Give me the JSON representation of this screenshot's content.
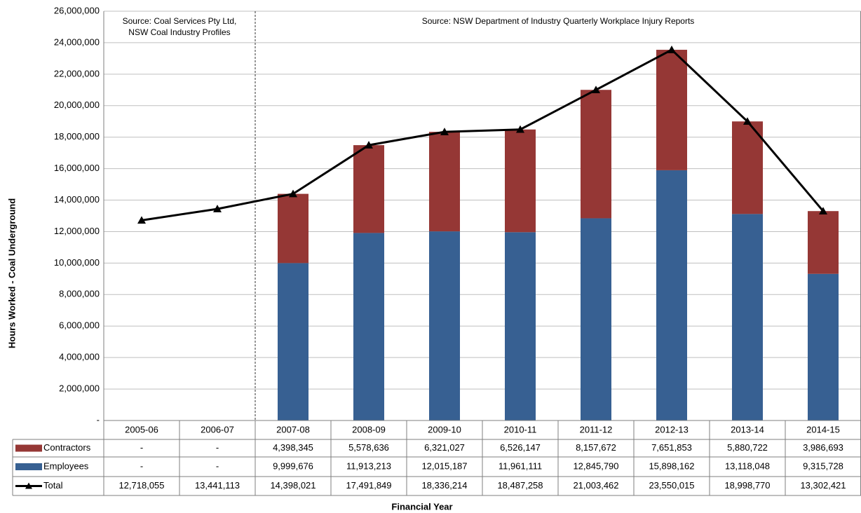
{
  "chart_data": {
    "type": "bar",
    "y_label": "Hours Worked - Coal Underground",
    "x_label": "Financial Year",
    "annotations": [
      [
        "Source:  Coal Services Pty Ltd,",
        "NSW Coal Industry Profiles"
      ],
      [
        "Source:  NSW Department of Industry Quarterly Workplace Injury Reports"
      ]
    ],
    "categories": [
      "2005-06",
      "2006-07",
      "2007-08",
      "2008-09",
      "2009-10",
      "2010-11",
      "2011-12",
      "2012-13",
      "2013-14",
      "2014-15"
    ],
    "series": [
      {
        "name": "Contractors",
        "color": "#953735",
        "kind": "bar",
        "values": [
          null,
          null,
          4398345,
          5578636,
          6321027,
          6526147,
          8157672,
          7651853,
          5880722,
          3986693
        ],
        "value_labels": [
          "-",
          "-",
          "4,398,345",
          "5,578,636",
          "6,321,027",
          "6,526,147",
          "8,157,672",
          "7,651,853",
          "5,880,722",
          "3,986,693"
        ]
      },
      {
        "name": "Employees",
        "color": "#376092",
        "kind": "bar",
        "values": [
          null,
          null,
          9999676,
          11913213,
          12015187,
          11961111,
          12845790,
          15898162,
          13118048,
          9315728
        ],
        "value_labels": [
          "-",
          "-",
          "9,999,676",
          "11,913,213",
          "12,015,187",
          "11,961,111",
          "12,845,790",
          "15,898,162",
          "13,118,048",
          "9,315,728"
        ]
      },
      {
        "name": "Total",
        "color": "#000000",
        "kind": "line",
        "values": [
          12718055,
          13441113,
          14398021,
          17491849,
          18336214,
          18487258,
          21003462,
          23550015,
          18998770,
          13302421
        ],
        "value_labels": [
          "12,718,055",
          "13,441,113",
          "14,398,021",
          "17,491,849",
          "18,336,214",
          "18,487,258",
          "21,003,462",
          "23,550,015",
          "18,998,770",
          "13,302,421"
        ]
      }
    ],
    "ylim": [
      0,
      26000000
    ],
    "yticks": [
      {
        "value": 0,
        "label": "-"
      },
      {
        "value": 2000000,
        "label": "2,000,000"
      },
      {
        "value": 4000000,
        "label": "4,000,000"
      },
      {
        "value": 6000000,
        "label": "6,000,000"
      },
      {
        "value": 8000000,
        "label": "8,000,000"
      },
      {
        "value": 10000000,
        "label": "10,000,000"
      },
      {
        "value": 12000000,
        "label": "12,000,000"
      },
      {
        "value": 14000000,
        "label": "14,000,000"
      },
      {
        "value": 16000000,
        "label": "16,000,000"
      },
      {
        "value": 18000000,
        "label": "18,000,000"
      },
      {
        "value": 20000000,
        "label": "20,000,000"
      },
      {
        "value": 22000000,
        "label": "22,000,000"
      },
      {
        "value": 24000000,
        "label": "24,000,000"
      },
      {
        "value": 26000000,
        "label": "26,000,000"
      }
    ],
    "grid": true
  }
}
